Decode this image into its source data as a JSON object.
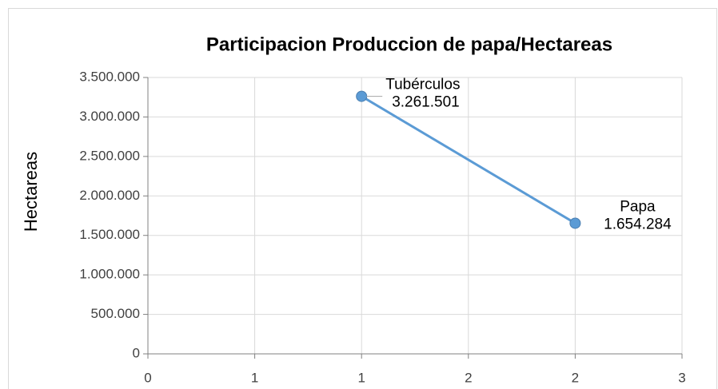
{
  "chart_data": {
    "type": "scatter",
    "title": "Participacion Produccion de papa/Hectareas",
    "y_label": "Hectareas",
    "x": [
      1.2,
      2.4
    ],
    "values": [
      3261501,
      1654284
    ],
    "value_labels": [
      "3.261.501",
      "1.654.284"
    ],
    "point_labels": [
      "Tubérculos",
      "Papa"
    ],
    "color": "#5b9bd5",
    "xlim": [
      0,
      3
    ],
    "xticks": [
      0,
      {
        "value": 0.6,
        "label": "1"
      },
      {
        "value": 1.2,
        "label": "1"
      },
      {
        "value": 1.8,
        "label": "2"
      },
      {
        "value": 2.4,
        "label": "2"
      },
      3
    ],
    "ylim": [
      0,
      3500000
    ],
    "yticks": [
      0,
      {
        "value": 500000,
        "label": "500.000"
      },
      {
        "value": 1000000,
        "label": "1.000.000"
      },
      {
        "value": 1500000,
        "label": "1.500.000"
      },
      {
        "value": 2000000,
        "label": "2.000.000"
      },
      {
        "value": 2500000,
        "label": "2.500.000"
      },
      {
        "value": 3000000,
        "label": "3.000.000"
      },
      {
        "value": 3500000,
        "label": "3.500.000"
      }
    ],
    "grid": true
  }
}
